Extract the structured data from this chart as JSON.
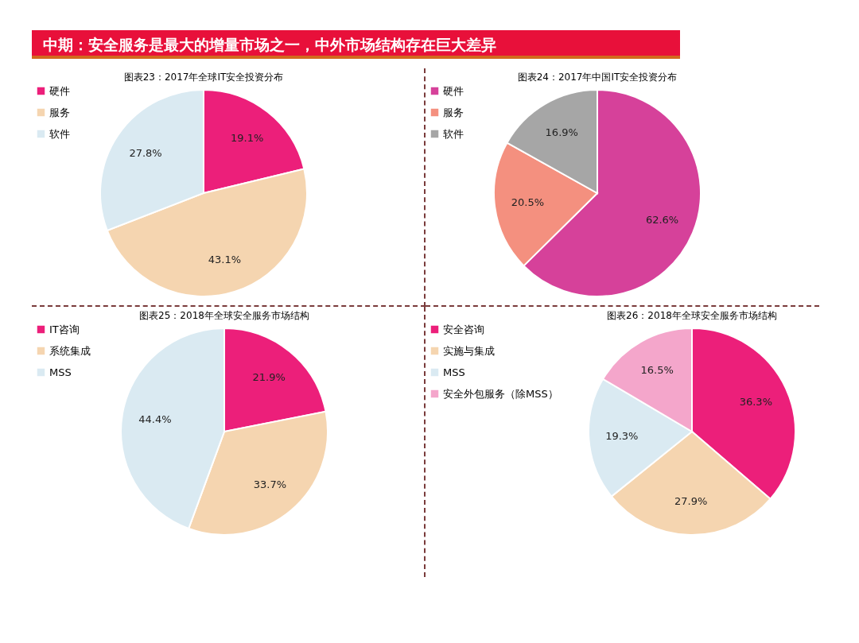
{
  "chart_data": [
    {
      "type": "pie",
      "title": "图表23：2017年全球IT安全投资分布",
      "annotations": [
        "中期：安全服务是最大的增量市场之一，中外市场结构存在巨大差异"
      ],
      "categories": [
        "硬件",
        "服务",
        "软件"
      ],
      "values": [
        19.1,
        43.1,
        27.8
      ],
      "value_labels": [
        "19.1%",
        "43.1%",
        "27.8%"
      ],
      "colors": [
        "#ec1f7a",
        "#f5d5b0",
        "#daeaf2"
      ],
      "legend": "left"
    },
    {
      "type": "pie",
      "title": "图表24：2017年中国IT安全投资分布",
      "categories": [
        "硬件",
        "服务",
        "软件"
      ],
      "values": [
        62.6,
        20.5,
        16.9
      ],
      "value_labels": [
        "62.6%",
        "20.5%",
        "16.9%"
      ],
      "colors": [
        "#d6419a",
        "#f4907f",
        "#a6a6a6"
      ],
      "legend": "left"
    },
    {
      "type": "pie",
      "title": "图表25：2018年全球安全服务市场结构",
      "categories": [
        "IT咨询",
        "系统集成",
        "MSS"
      ],
      "values": [
        21.9,
        33.7,
        44.4
      ],
      "value_labels": [
        "21.9%",
        "33.7%",
        "44.4%"
      ],
      "colors": [
        "#ec1f7a",
        "#f5d5b0",
        "#daeaf2"
      ],
      "legend": "left"
    },
    {
      "type": "pie",
      "title": "图表26：2018年全球安全服务市场结构",
      "categories": [
        "安全咨询",
        "实施与集成",
        "MSS",
        "安全外包服务（除MSS）"
      ],
      "values": [
        36.3,
        27.9,
        19.3,
        16.5
      ],
      "value_labels": [
        "36.3%",
        "27.9%",
        "19.3%",
        "16.5%"
      ],
      "colors": [
        "#ec1f7a",
        "#f5d5b0",
        "#daeaf2",
        "#f4a6cb"
      ],
      "legend": "left"
    }
  ]
}
